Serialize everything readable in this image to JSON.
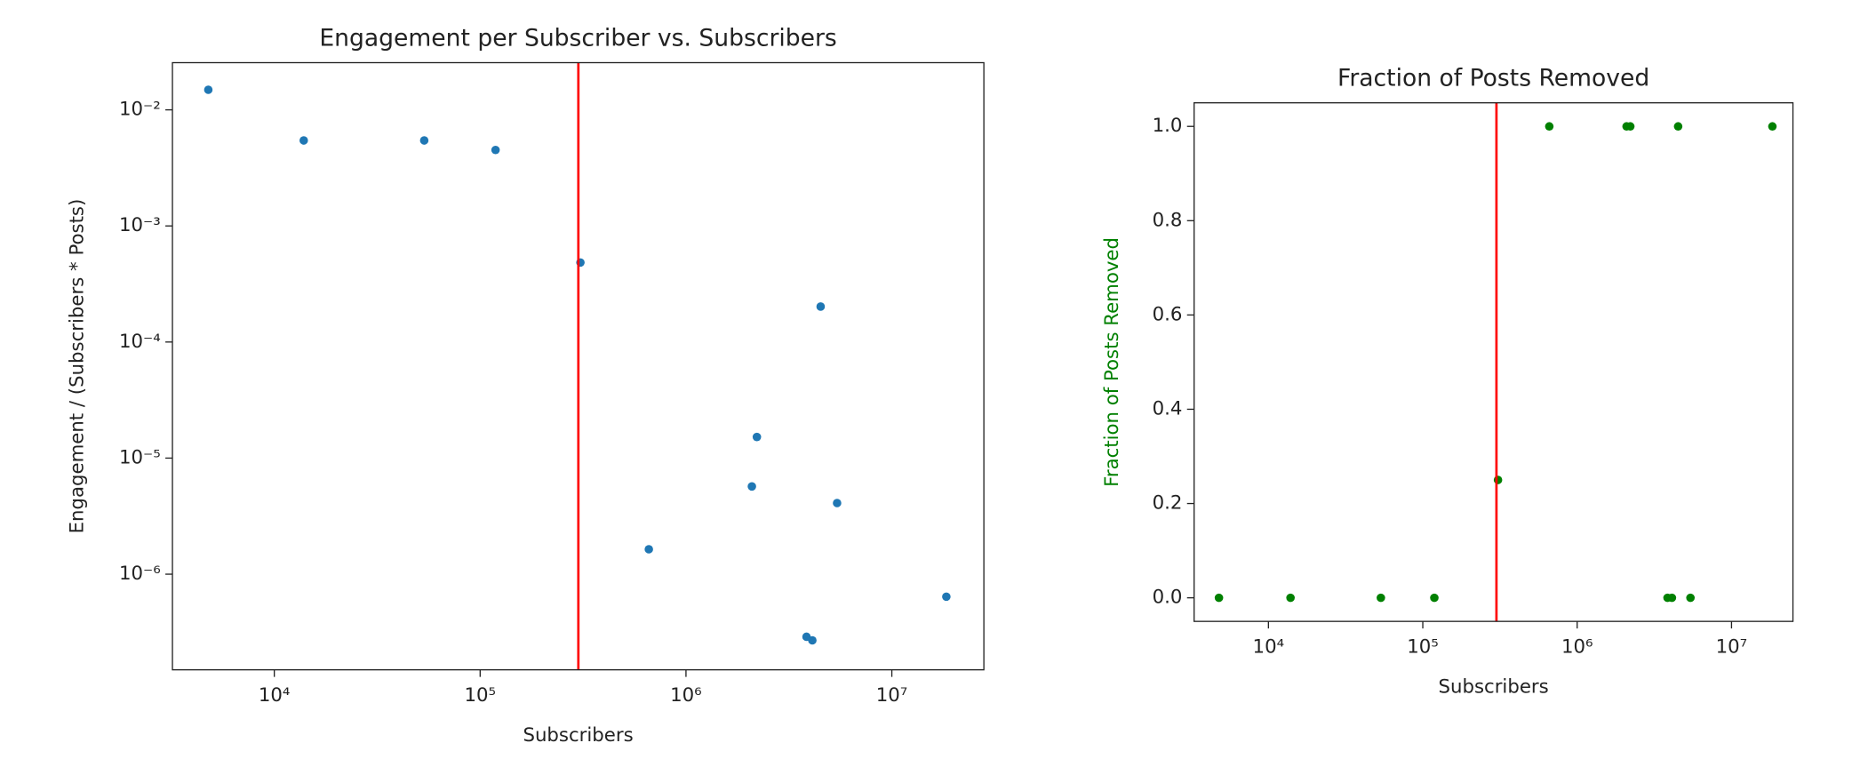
{
  "chart_data": [
    {
      "type": "scatter",
      "title": "Engagement per Subscriber vs. Subscribers",
      "x_label": "Subscribers",
      "y_label": "Engagement / (Subscribers * Posts)",
      "x_log": true,
      "y_log": true,
      "x": [
        4780,
        13900,
        53500,
        118800,
        307000,
        660000,
        2090000,
        2210000,
        3850000,
        4110000,
        4510000,
        5420000,
        18400000
      ],
      "series": [
        {
          "color": "#1f77b4",
          "values": [
            0.0149,
            0.00545,
            0.00545,
            0.00451,
            0.000484,
            1.64e-06,
            5.7e-06,
            1.52e-05,
            2.89e-07,
            2.69e-07,
            0.000202,
            4.1e-06,
            6.4e-07
          ]
        }
      ],
      "vline": 300000,
      "vline_color": "red",
      "label_color": "#222222",
      "xlim": [
        3200,
        28000000
      ],
      "ylim": [
        1.5e-07,
        0.0255
      ],
      "xticks": [
        {
          "value": 10000,
          "label": "10⁴"
        },
        {
          "value": 100000,
          "label": "10⁵"
        },
        {
          "value": 1000000,
          "label": "10⁶"
        },
        {
          "value": 10000000,
          "label": "10⁷"
        }
      ],
      "yticks": [
        {
          "value": 1e-06,
          "label": "10⁻⁶"
        },
        {
          "value": 1e-05,
          "label": "10⁻⁵"
        },
        {
          "value": 0.0001,
          "label": "10⁻⁴"
        },
        {
          "value": 0.001,
          "label": "10⁻³"
        },
        {
          "value": 0.01,
          "label": "10⁻²"
        }
      ]
    },
    {
      "type": "scatter",
      "title": "Fraction of Posts Removed",
      "x_label": "Subscribers",
      "y_label": "Fraction of Posts Removed",
      "x_log": true,
      "y_log": false,
      "x": [
        4780,
        13900,
        53500,
        118800,
        307000,
        660000,
        2090000,
        2210000,
        3850000,
        4110000,
        4510000,
        5420000,
        18400000
      ],
      "series": [
        {
          "color": "green",
          "values": [
            0,
            0,
            0,
            0,
            0.25,
            1,
            1,
            1,
            0,
            0,
            1,
            0,
            1
          ]
        }
      ],
      "vline": 300000,
      "vline_color": "red",
      "label_color": "green",
      "xlim": [
        3300,
        25000000
      ],
      "ylim": [
        -0.05,
        1.05
      ],
      "xticks": [
        {
          "value": 10000,
          "label": "10⁴"
        },
        {
          "value": 100000,
          "label": "10⁵"
        },
        {
          "value": 1000000,
          "label": "10⁶"
        },
        {
          "value": 10000000,
          "label": "10⁷"
        }
      ],
      "yticks": [
        {
          "value": 0,
          "label": "0.0"
        },
        {
          "value": 0.2,
          "label": "0.2"
        },
        {
          "value": 0.4,
          "label": "0.4"
        },
        {
          "value": 0.6,
          "label": "0.6"
        },
        {
          "value": 0.8,
          "label": "0.8"
        },
        {
          "value": 1,
          "label": "1.0"
        }
      ]
    }
  ]
}
